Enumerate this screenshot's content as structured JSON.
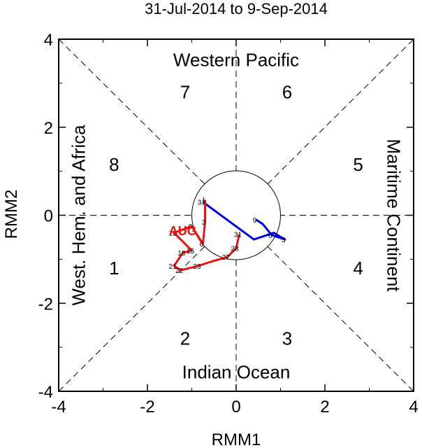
{
  "chart_data": {
    "type": "line",
    "title": "31-Jul-2014 to 9-Sep-2014",
    "xlabel": "RMM1",
    "ylabel": "RMM2",
    "xlim": [
      -4,
      4
    ],
    "ylim": [
      -4,
      4
    ],
    "xticks": [
      "-4",
      "-2",
      "0",
      "2",
      "4"
    ],
    "yticks": [
      "-4",
      "-2",
      "0",
      "2",
      "4"
    ],
    "regions": {
      "top": "Western Pacific",
      "bottom": "Indian Ocean",
      "left": "West. Hem. and Africa",
      "right": "Maritime Continent"
    },
    "phases": [
      {
        "label": "1",
        "x": -2.75,
        "y": -1.2
      },
      {
        "label": "2",
        "x": -1.15,
        "y": -2.8
      },
      {
        "label": "3",
        "x": 1.15,
        "y": -2.8
      },
      {
        "label": "4",
        "x": 2.75,
        "y": -1.2
      },
      {
        "label": "5",
        "x": 2.75,
        "y": 1.15
      },
      {
        "label": "6",
        "x": 1.15,
        "y": 2.8
      },
      {
        "label": "7",
        "x": -1.15,
        "y": 2.8
      },
      {
        "label": "8",
        "x": -2.75,
        "y": 1.15
      }
    ],
    "series": [
      {
        "color": "#0000dd",
        "points": [
          {
            "x": -0.75,
            "y": 0.3,
            "label": "31"
          },
          {
            "x": 0.4,
            "y": -0.55,
            "label": ""
          },
          {
            "x": 0.85,
            "y": -0.4,
            "label": ""
          },
          {
            "x": 1.1,
            "y": -0.55,
            "label": "3"
          },
          {
            "x": 0.8,
            "y": -0.45,
            "label": "6"
          },
          {
            "x": 0.6,
            "y": -0.2,
            "label": ""
          },
          {
            "x": 0.45,
            "y": -0.1,
            "label": "9"
          }
        ],
        "month_label": ""
      },
      {
        "color": "#ee1111",
        "points": [
          {
            "x": 0.07,
            "y": -0.43,
            "label": "31"
          },
          {
            "x": 0.0,
            "y": -0.75,
            "label": "28"
          },
          {
            "x": -0.2,
            "y": -0.95,
            "label": "27"
          },
          {
            "x": -0.55,
            "y": -1.05,
            "label": ""
          },
          {
            "x": -0.85,
            "y": -1.15,
            "label": "23"
          },
          {
            "x": -1.25,
            "y": -1.25,
            "label": "22"
          },
          {
            "x": -1.4,
            "y": -1.15,
            "label": "21"
          },
          {
            "x": -1.2,
            "y": -0.85,
            "label": "18"
          },
          {
            "x": -1.0,
            "y": -0.8,
            "label": "15"
          },
          {
            "x": -1.4,
            "y": -0.4,
            "label": "12"
          },
          {
            "x": -1.0,
            "y": -0.25,
            "label": "9"
          },
          {
            "x": -0.75,
            "y": -0.65,
            "label": "6"
          },
          {
            "x": -0.7,
            "y": -0.15,
            "label": "3"
          },
          {
            "x": -0.7,
            "y": 0.35,
            "label": "1"
          }
        ],
        "month_label": "AUG"
      }
    ]
  }
}
